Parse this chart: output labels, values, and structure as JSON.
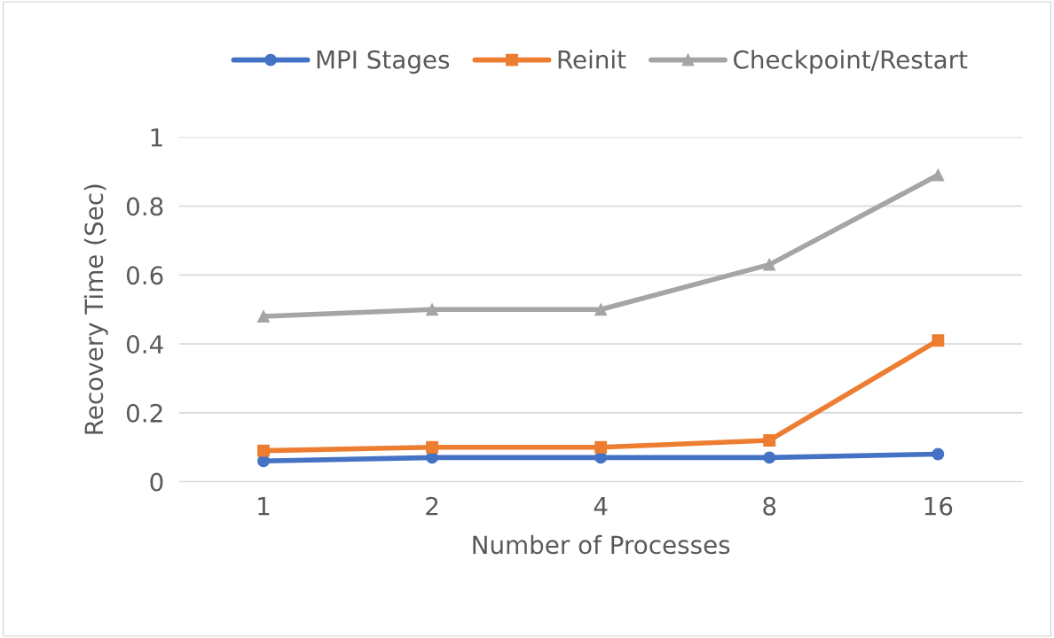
{
  "chart_data": {
    "type": "line",
    "xlabel": "Number of Processes",
    "ylabel": "Recovery Time (Sec)",
    "categories": [
      "1",
      "2",
      "4",
      "8",
      "16"
    ],
    "series": [
      {
        "name": "MPI Stages",
        "color": "#4472c4",
        "marker": "circle",
        "values": [
          0.06,
          0.07,
          0.07,
          0.07,
          0.08
        ]
      },
      {
        "name": "Reinit",
        "color": "#ed7d31",
        "marker": "square",
        "values": [
          0.09,
          0.1,
          0.1,
          0.12,
          0.41
        ]
      },
      {
        "name": "Checkpoint/Restart",
        "color": "#a5a5a5",
        "marker": "triangle",
        "values": [
          0.48,
          0.5,
          0.5,
          0.63,
          0.89
        ]
      }
    ],
    "ylim": [
      0,
      1
    ],
    "yticks": [
      0,
      0.2,
      0.4,
      0.6,
      0.8,
      1
    ],
    "grid": "y",
    "legend": "top",
    "line_style": "solid"
  }
}
